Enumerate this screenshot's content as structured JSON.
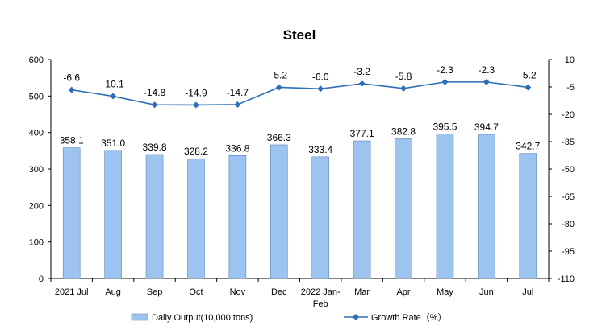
{
  "chart_data": {
    "type": "bar",
    "title": "Steel",
    "categories": [
      "2021 Jul",
      "Aug",
      "Sep",
      "Oct",
      "Nov",
      "Dec",
      "2022 Jan-Feb",
      "Mar",
      "Apr",
      "May",
      "Jun",
      "Jul"
    ],
    "category_lines": [
      [
        "2021 Jul"
      ],
      [
        "Aug"
      ],
      [
        "Sep"
      ],
      [
        "Oct"
      ],
      [
        "Nov"
      ],
      [
        "Dec"
      ],
      [
        "2022 Jan-",
        "Feb"
      ],
      [
        "Mar"
      ],
      [
        "Apr"
      ],
      [
        "May"
      ],
      [
        "Jun"
      ],
      [
        "Jul"
      ]
    ],
    "series": [
      {
        "name": "Daily Output(10,000 tons)",
        "type": "bar",
        "axis": "left",
        "values": [
          358.1,
          351.0,
          339.8,
          328.2,
          336.8,
          366.3,
          333.4,
          377.1,
          382.8,
          395.5,
          394.7,
          342.7
        ],
        "labels": [
          "358.1",
          "351.0",
          "339.8",
          "328.2",
          "336.8",
          "366.3",
          "333.4",
          "377.1",
          "382.8",
          "395.5",
          "394.7",
          "342.7"
        ],
        "color": "#9DC3F0"
      },
      {
        "name": "Growth Rate（%）",
        "type": "line",
        "axis": "right",
        "values": [
          -6.6,
          -10.1,
          -14.8,
          -14.9,
          -14.7,
          -5.2,
          -6.0,
          -3.2,
          -5.8,
          -2.3,
          -2.3,
          -5.2
        ],
        "labels": [
          "-6.6",
          "-10.1",
          "-14.8",
          "-14.9",
          "-14.7",
          "-5.2",
          "-6.0",
          "-3.2",
          "-5.8",
          "-2.3",
          "-2.3",
          "-5.2"
        ],
        "color": "#2E6EB5"
      }
    ],
    "y_left": {
      "min": 0,
      "max": 600,
      "ticks": [
        0,
        100,
        200,
        300,
        400,
        500,
        600
      ]
    },
    "y_right": {
      "min": -110,
      "max": 10,
      "ticks": [
        10,
        -5,
        -20,
        -35,
        -50,
        -65,
        -80,
        -95,
        -110
      ]
    },
    "grid": false,
    "legend_position": "bottom"
  }
}
